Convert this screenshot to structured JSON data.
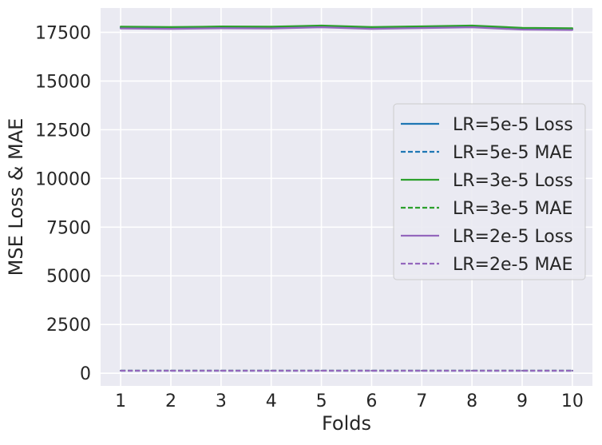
{
  "chart_data": {
    "type": "line",
    "title": "",
    "xlabel": "Folds",
    "ylabel": "MSE Loss & MAE",
    "x": [
      1,
      2,
      3,
      4,
      5,
      6,
      7,
      8,
      9,
      10
    ],
    "xlim": [
      0.6,
      10.4
    ],
    "ylim": [
      -650,
      18750
    ],
    "yticks": [
      0,
      2500,
      5000,
      7500,
      10000,
      12500,
      15000,
      17500
    ],
    "grid": true,
    "legend_position": "center-right",
    "series": [
      {
        "name": "LR=5e-5 Loss",
        "color": "#1f77b4",
        "dash": "solid",
        "values": [
          17740,
          17720,
          17750,
          17740,
          17800,
          17720,
          17760,
          17800,
          17680,
          17660
        ]
      },
      {
        "name": "LR=5e-5 MAE",
        "color": "#1f77b4",
        "dash": "dashed",
        "values": [
          130,
          130,
          130,
          130,
          131,
          130,
          130,
          131,
          130,
          130
        ]
      },
      {
        "name": "LR=3e-5 Loss",
        "color": "#2ca02c",
        "dash": "solid",
        "values": [
          17790,
          17770,
          17800,
          17790,
          17850,
          17770,
          17810,
          17850,
          17730,
          17710
        ]
      },
      {
        "name": "LR=3e-5 MAE",
        "color": "#2ca02c",
        "dash": "dashed",
        "values": [
          131,
          131,
          131,
          131,
          132,
          131,
          131,
          132,
          131,
          131
        ]
      },
      {
        "name": "LR=2e-5 Loss",
        "color": "#9467bd",
        "dash": "solid",
        "values": [
          17700,
          17680,
          17710,
          17700,
          17760,
          17680,
          17720,
          17760,
          17640,
          17620
        ]
      },
      {
        "name": "LR=2e-5 MAE",
        "color": "#9467bd",
        "dash": "dashed",
        "values": [
          129,
          129,
          129,
          129,
          130,
          129,
          129,
          130,
          129,
          129
        ]
      }
    ],
    "colors": {
      "plot_background": "#eaeaf2",
      "grid": "#ffffff",
      "text": "#262626"
    }
  }
}
